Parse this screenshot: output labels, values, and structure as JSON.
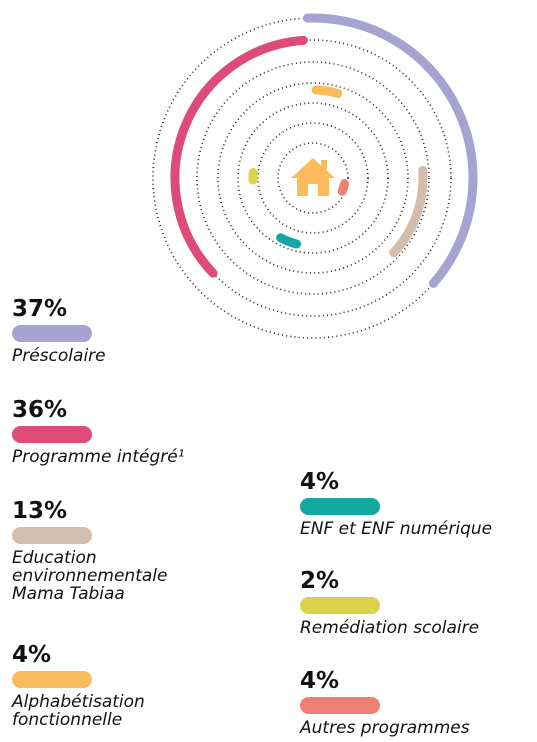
{
  "chart_data": {
    "type": "radial",
    "categories": [
      "Préscolaire",
      "Programme intégré¹",
      "Education environnementale Mama Tabiaa",
      "Alphabétisation fonctionnelle",
      "ENF et ENF numérique",
      "Remédiation scolaire",
      "Autres programmes"
    ],
    "values": [
      37,
      36,
      13,
      4,
      4,
      2,
      4
    ],
    "value_labels": [
      "37%",
      "36%",
      "13%",
      "4%",
      "4%",
      "2%",
      "4%"
    ],
    "colors": [
      "#a6a3d3",
      "#de4b78",
      "#d3beae",
      "#fbbb5b",
      "#11a8a2",
      "#dcd34a",
      "#f07f73"
    ]
  }
}
